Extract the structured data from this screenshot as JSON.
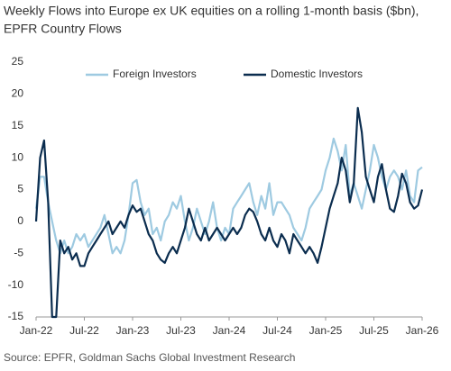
{
  "chart_data": {
    "type": "line",
    "title": [
      "Weekly Flows into Europe ex UK equities on a rolling 1-month basis ($bn),",
      "EPFR Country Flows"
    ],
    "source": "Source: EPFR, Goldman Sachs Global Investment Research",
    "categories": [
      "Jan-22",
      null,
      null,
      null,
      null,
      null,
      null,
      null,
      null,
      null,
      null,
      null,
      "Jul-22",
      null,
      null,
      null,
      null,
      null,
      null,
      null,
      null,
      null,
      null,
      null,
      "Jan-23",
      null,
      null,
      null,
      null,
      null,
      null,
      null,
      null,
      null,
      null,
      null,
      "Jul-23",
      null,
      null,
      null,
      null,
      null,
      null,
      null,
      null,
      null,
      null,
      null,
      "Jan-24",
      null,
      null,
      null,
      null,
      null,
      null,
      null,
      null,
      null,
      null,
      null,
      "Jul-24",
      null,
      null,
      null,
      null,
      null,
      null,
      null,
      null,
      null,
      null,
      null,
      "Jan-25",
      null,
      null,
      null,
      null,
      null,
      null,
      null,
      null,
      null,
      null,
      null,
      "Jul-25",
      null,
      null,
      null,
      null,
      null,
      null,
      null,
      null,
      null,
      null,
      null,
      "Jan-26"
    ],
    "series": [
      {
        "name": "Foreign Investors",
        "color": "#9ecae1",
        "values": [
          2,
          7,
          7,
          3,
          0,
          -3,
          -5,
          -3,
          -5,
          -4,
          -2,
          -3,
          -2,
          -4,
          -3,
          -2,
          -1,
          1,
          -2,
          -5,
          -4,
          -5,
          -3,
          1,
          6,
          6.5,
          3,
          1,
          2,
          -2,
          -1,
          -3,
          0,
          1,
          3,
          2,
          4,
          0,
          -3,
          -1,
          2,
          0,
          -2,
          0,
          3,
          -1,
          -3,
          -1,
          -2,
          2,
          3,
          4,
          5,
          6,
          3,
          1,
          4,
          2,
          6,
          1,
          3,
          3,
          2,
          1,
          -1,
          -2,
          -3,
          -1,
          2,
          3,
          4,
          5,
          8,
          10,
          13,
          11,
          8,
          12,
          4,
          6,
          4,
          2,
          5,
          8,
          12,
          10,
          7,
          5,
          7,
          8,
          7,
          5,
          8,
          4,
          3,
          8,
          8.5
        ]
      },
      {
        "name": "Domestic Investors",
        "color": "#0b2d4f",
        "values": [
          0,
          10,
          12.7,
          3,
          -15,
          -15,
          -3,
          -5,
          -4,
          -6,
          -5,
          -7,
          -7,
          -5,
          -4,
          -3,
          -2,
          -1,
          0,
          -2,
          -1,
          0,
          -1,
          1,
          2.5,
          1.5,
          2,
          0,
          -2,
          -3,
          -5,
          -6,
          -6.5,
          -5,
          -4,
          -5,
          -3,
          -1,
          2,
          0,
          -2,
          -3,
          -1,
          -3,
          -2,
          -1,
          -2,
          -3,
          -2,
          -1,
          -2,
          -1,
          1,
          2,
          1.5,
          0,
          -2,
          -3,
          -1,
          -3,
          -4,
          -2,
          -3,
          -5,
          -2,
          -3,
          -4,
          -5,
          -4,
          -5,
          -6.5,
          -4,
          -1,
          2,
          4,
          6,
          10,
          8,
          3,
          6,
          17.8,
          14,
          7,
          5,
          3,
          7,
          9,
          5,
          2,
          1.5,
          4,
          7.5,
          6,
          3,
          2,
          2.5,
          5
        ]
      }
    ],
    "ylim": [
      -15,
      25
    ],
    "yticks": [
      -15,
      -10,
      -5,
      0,
      5,
      10,
      15,
      20,
      25
    ],
    "grid": false,
    "legend": "top"
  }
}
